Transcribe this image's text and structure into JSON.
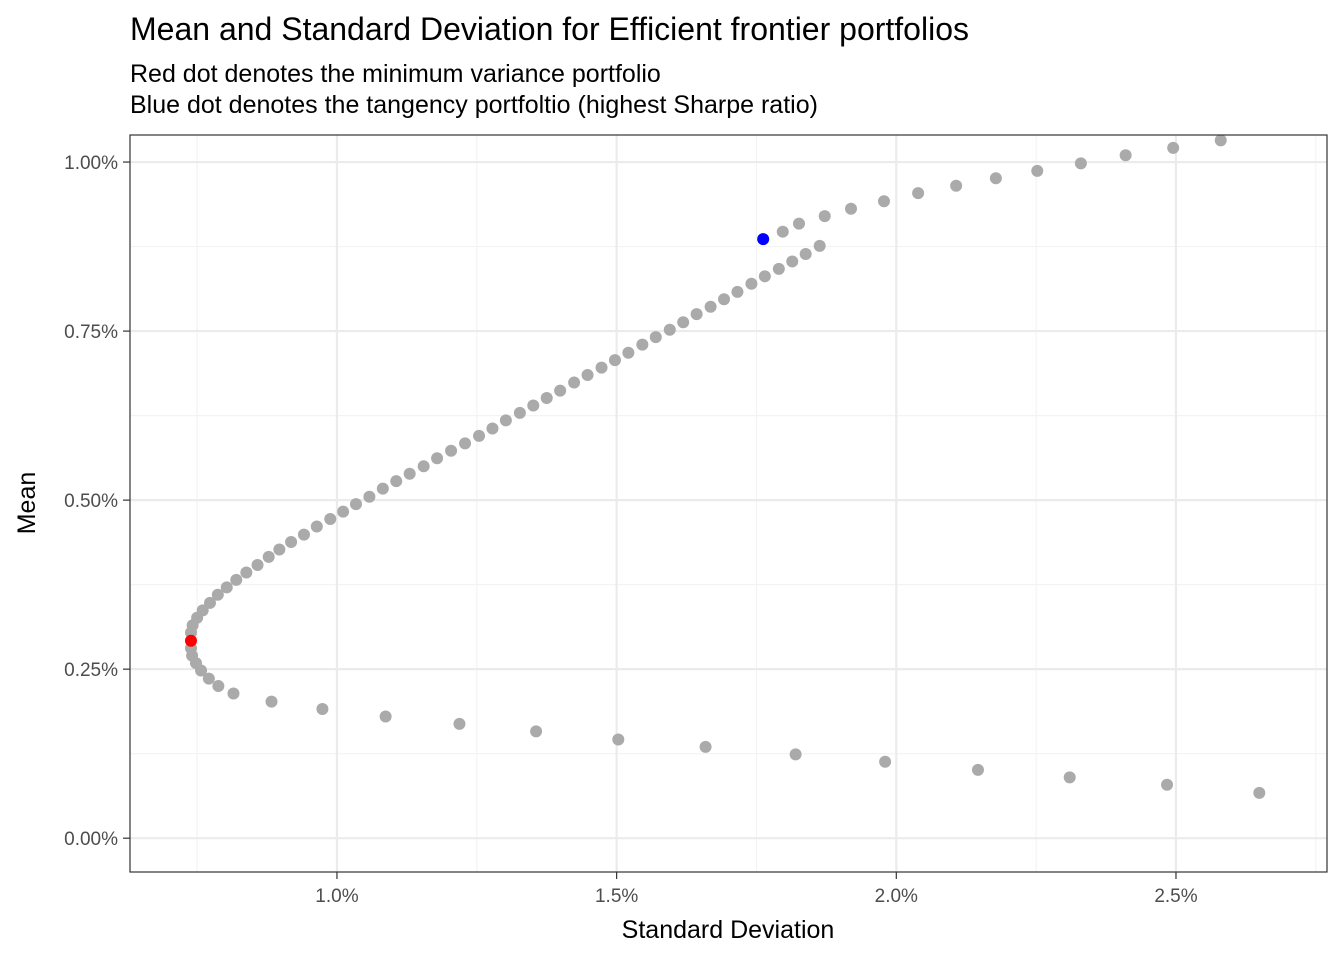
{
  "chart_data": {
    "type": "scatter",
    "title": "Mean and Standard Deviation for Efficient frontier portfolios",
    "subtitle_lines": [
      "Red dot denotes the minimum variance portfolio",
      "Blue dot denotes the tangency portfoltio (highest Sharpe ratio)"
    ],
    "xlabel": "Standard Deviation",
    "ylabel": "Mean",
    "xlim": [
      0.0063,
      0.0277
    ],
    "ylim": [
      -0.0005,
      0.0104
    ],
    "x_ticks": [
      {
        "value": 0.01,
        "label": "1.0%"
      },
      {
        "value": 0.015,
        "label": "1.5%"
      },
      {
        "value": 0.02,
        "label": "2.0%"
      },
      {
        "value": 0.025,
        "label": "2.5%"
      }
    ],
    "y_ticks": [
      {
        "value": 0.0,
        "label": "0.00%"
      },
      {
        "value": 0.0025,
        "label": "0.25%"
      },
      {
        "value": 0.005,
        "label": "0.50%"
      },
      {
        "value": 0.0075,
        "label": "0.75%"
      },
      {
        "value": 0.01,
        "label": "1.00%"
      }
    ],
    "x_minor_ticks": [
      0.0075,
      0.0125,
      0.0175,
      0.0225,
      0.0275
    ],
    "y_minor_ticks": [
      0.00125,
      0.00375,
      0.00625,
      0.00875
    ],
    "grid": true,
    "colors": {
      "points": "#aaaaaa",
      "min_variance": "#ff0000",
      "tangency": "#0000ff",
      "grid_major": "#ebebeb",
      "grid_minor": "#f3f3f3",
      "panel_border": "#333333"
    },
    "series": [
      {
        "role": "frontier",
        "points": [
          [
            0.02649,
            0.00067
          ],
          [
            0.02484,
            0.00079
          ],
          [
            0.0231,
            0.0009
          ],
          [
            0.02146,
            0.00101
          ],
          [
            0.0198,
            0.00113
          ],
          [
            0.0182,
            0.00124
          ],
          [
            0.01659,
            0.00135
          ],
          [
            0.01503,
            0.00146
          ],
          [
            0.01356,
            0.00158
          ],
          [
            0.01219,
            0.00169
          ],
          [
            0.01087,
            0.0018
          ],
          [
            0.00974,
            0.00191
          ],
          [
            0.00883,
            0.00202
          ],
          [
            0.00815,
            0.00214
          ],
          [
            0.00788,
            0.00225
          ],
          [
            0.00771,
            0.00236
          ],
          [
            0.00757,
            0.00248
          ],
          [
            0.00748,
            0.00259
          ],
          [
            0.00741,
            0.0027
          ],
          [
            0.00739,
            0.00281
          ],
          [
            0.00739,
            0.00304
          ],
          [
            0.00742,
            0.00315
          ],
          [
            0.0075,
            0.00326
          ],
          [
            0.0076,
            0.00337
          ],
          [
            0.00773,
            0.00348
          ],
          [
            0.00787,
            0.0036
          ],
          [
            0.00803,
            0.00371
          ],
          [
            0.0082,
            0.00382
          ],
          [
            0.00838,
            0.00393
          ],
          [
            0.00858,
            0.00404
          ],
          [
            0.00878,
            0.00416
          ],
          [
            0.00897,
            0.00427
          ],
          [
            0.00918,
            0.00438
          ],
          [
            0.00941,
            0.00449
          ],
          [
            0.00964,
            0.00461
          ],
          [
            0.00988,
            0.00472
          ],
          [
            0.01011,
            0.00483
          ],
          [
            0.01034,
            0.00494
          ],
          [
            0.01058,
            0.00505
          ],
          [
            0.01082,
            0.00517
          ],
          [
            0.01106,
            0.00528
          ],
          [
            0.0113,
            0.00539
          ],
          [
            0.01155,
            0.0055
          ],
          [
            0.01179,
            0.00562
          ],
          [
            0.01204,
            0.00573
          ],
          [
            0.01229,
            0.00584
          ],
          [
            0.01254,
            0.00595
          ],
          [
            0.01278,
            0.00606
          ],
          [
            0.01302,
            0.00618
          ],
          [
            0.01327,
            0.00629
          ],
          [
            0.01351,
            0.0064
          ],
          [
            0.01375,
            0.00651
          ],
          [
            0.01399,
            0.00662
          ],
          [
            0.01424,
            0.00674
          ],
          [
            0.01448,
            0.00685
          ],
          [
            0.01473,
            0.00696
          ],
          [
            0.01497,
            0.00707
          ],
          [
            0.01521,
            0.00718
          ],
          [
            0.01546,
            0.0073
          ],
          [
            0.0157,
            0.00741
          ],
          [
            0.01595,
            0.00752
          ],
          [
            0.01619,
            0.00763
          ],
          [
            0.01643,
            0.00775
          ],
          [
            0.01668,
            0.00786
          ],
          [
            0.01692,
            0.00797
          ],
          [
            0.01716,
            0.00808
          ],
          [
            0.01741,
            0.0082
          ],
          [
            0.01765,
            0.00831
          ],
          [
            0.0179,
            0.00842
          ],
          [
            0.01814,
            0.00853
          ],
          [
            0.01838,
            0.00864
          ],
          [
            0.01863,
            0.00876
          ],
          [
            0.01797,
            0.00897
          ],
          [
            0.01826,
            0.00909
          ],
          [
            0.01872,
            0.0092
          ],
          [
            0.01919,
            0.00931
          ],
          [
            0.01978,
            0.00942
          ],
          [
            0.02039,
            0.00954
          ],
          [
            0.02107,
            0.00965
          ],
          [
            0.02178,
            0.00976
          ],
          [
            0.02252,
            0.00987
          ],
          [
            0.0233,
            0.00998
          ],
          [
            0.0241,
            0.0101
          ],
          [
            0.02495,
            0.01021
          ],
          [
            0.0258,
            0.01032
          ]
        ]
      },
      {
        "role": "min_variance",
        "points": [
          [
            0.00739,
            0.00292
          ]
        ]
      },
      {
        "role": "tangency",
        "points": [
          [
            0.01762,
            0.00886
          ]
        ]
      }
    ]
  }
}
